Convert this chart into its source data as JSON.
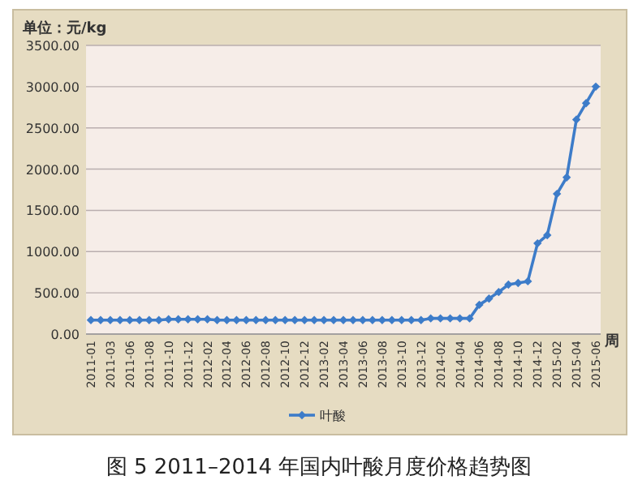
{
  "chart_data": {
    "type": "line",
    "title": "图 5   2011–2014 年国内叶酸月度价格趋势图",
    "ylabel": "单位：元/kg",
    "xlabel": "周",
    "categories": [
      "2011-01",
      null,
      "2011-03",
      null,
      "2011-06",
      null,
      "2011-08",
      null,
      "2011-10",
      null,
      "2011-12",
      null,
      "2012-02",
      null,
      "2012-04",
      null,
      "2012-06",
      null,
      "2012-08",
      null,
      "2012-10",
      null,
      "2012-12",
      null,
      "2013-02",
      null,
      "2013-04",
      null,
      "2013-06",
      null,
      "2013-08",
      null,
      "2013-10",
      null,
      "2013-12",
      null,
      "2014-02",
      null,
      "2014-04",
      null,
      "2014-06",
      null,
      "2014-08",
      null,
      "2014-10",
      null,
      "2014-12",
      null,
      "2015-02",
      null,
      "2015-04",
      null,
      "2015-06"
    ],
    "series": [
      {
        "name": "叶酸",
        "color": "#3d7cc9",
        "values": [
          170,
          170,
          170,
          170,
          170,
          170,
          170,
          170,
          180,
          180,
          180,
          180,
          180,
          170,
          170,
          170,
          170,
          170,
          170,
          170,
          170,
          170,
          170,
          170,
          170,
          170,
          170,
          170,
          170,
          170,
          170,
          170,
          170,
          170,
          170,
          190,
          190,
          190,
          190,
          190,
          355,
          430,
          510,
          600,
          620,
          640,
          1100,
          1200,
          1700,
          1900,
          2600,
          2800,
          3000
        ]
      }
    ],
    "ylim": [
      0,
      3500
    ],
    "yticks": [
      {
        "value": 0,
        "label": "0.00"
      },
      {
        "value": 500,
        "label": "500.00"
      },
      {
        "value": 1000,
        "label": "1000.00"
      },
      {
        "value": 1500,
        "label": "1500.00"
      },
      {
        "value": 2000,
        "label": "2000.00"
      },
      {
        "value": 2500,
        "label": "2500.00"
      },
      {
        "value": 3000,
        "label": "3000.00"
      },
      {
        "value": 3500,
        "label": "3500.00"
      }
    ],
    "grid": "y",
    "legend": "bottom",
    "marker": "diamond",
    "line_style": "solid"
  }
}
